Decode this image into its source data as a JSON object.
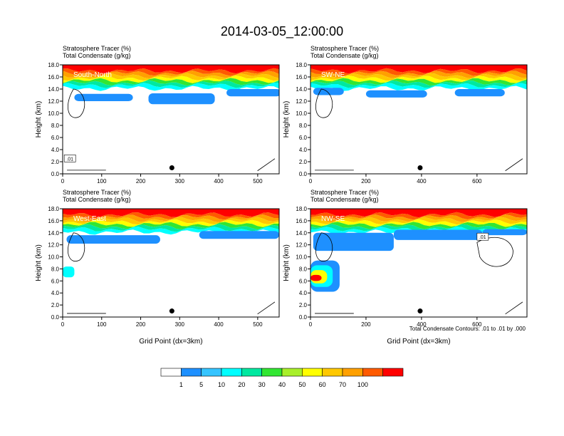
{
  "title": "2014-03-05_12:00:00",
  "footer_note": "Total Condensate Contours: .01 to .01 by .000",
  "colorbar": {
    "levels": [
      "1",
      "5",
      "10",
      "20",
      "30",
      "40",
      "50",
      "60",
      "70",
      "100"
    ],
    "colors": [
      "#ffffff",
      "#1e90ff",
      "#35c4ff",
      "#00ffff",
      "#00e8a0",
      "#32e632",
      "#a8ef2a",
      "#ffff00",
      "#ffc800",
      "#ffa000",
      "#ff5a00",
      "#ff0000"
    ]
  },
  "chart_data": [
    {
      "type": "heatmap",
      "title": "South-North",
      "header_lines": [
        "Stratosphere Tracer   (%)",
        "Total Condensate   (g/kg)"
      ],
      "ylabel": "Height (km)",
      "xlabel": "",
      "xlim": [
        0,
        555
      ],
      "ylim": [
        0,
        18
      ],
      "xticks": [
        "0",
        "100",
        "200",
        "300",
        "400",
        "500"
      ],
      "yticks": [
        "0.0",
        "2.0",
        "4.0",
        "6.0",
        "8.0",
        "10.0",
        "12.0",
        "14.0",
        "16.0",
        "18.0"
      ],
      "contour_label": ".01",
      "marker": {
        "x": 280,
        "y": 1.0
      }
    },
    {
      "type": "heatmap",
      "title": "SW-NE",
      "header_lines": [
        "Stratosphere Tracer   (%)",
        "Total Condensate   (g/kg)"
      ],
      "ylabel": "Height (km)",
      "xlabel": "",
      "xlim": [
        0,
        780
      ],
      "ylim": [
        0,
        18
      ],
      "xticks": [
        "0",
        "200",
        "400",
        "600"
      ],
      "yticks": [
        "0.0",
        "2.0",
        "4.0",
        "6.0",
        "8.0",
        "10.0",
        "12.0",
        "14.0",
        "16.0",
        "18.0"
      ],
      "contour_label": "",
      "marker": {
        "x": 395,
        "y": 1.0
      }
    },
    {
      "type": "heatmap",
      "title": "West-East",
      "header_lines": [
        "Stratosphere Tracer   (%)",
        "Total Condensate   (g/kg)"
      ],
      "ylabel": "Height (km)",
      "xlabel": "Grid Point (dx=3km)",
      "xlim": [
        0,
        555
      ],
      "ylim": [
        0,
        18
      ],
      "xticks": [
        "0",
        "100",
        "200",
        "300",
        "400",
        "500"
      ],
      "yticks": [
        "0.0",
        "2.0",
        "4.0",
        "6.0",
        "8.0",
        "10.0",
        "12.0",
        "14.0",
        "16.0",
        "18.0"
      ],
      "contour_label": "",
      "marker": {
        "x": 280,
        "y": 1.0
      }
    },
    {
      "type": "heatmap",
      "title": "NW-SE",
      "header_lines": [
        "Stratosphere Tracer   (%)",
        "Total Condensate   (g/kg)"
      ],
      "ylabel": "Height (km)",
      "xlabel": "Grid Point (dx=3km)",
      "xlim": [
        0,
        780
      ],
      "ylim": [
        0,
        18
      ],
      "xticks": [
        "0",
        "200",
        "400",
        "600"
      ],
      "yticks": [
        "0.0",
        "2.0",
        "4.0",
        "6.0",
        "8.0",
        "10.0",
        "12.0",
        "14.0",
        "16.0",
        "18.0"
      ],
      "contour_label": ".01",
      "marker": {
        "x": 395,
        "y": 1.0
      }
    }
  ]
}
